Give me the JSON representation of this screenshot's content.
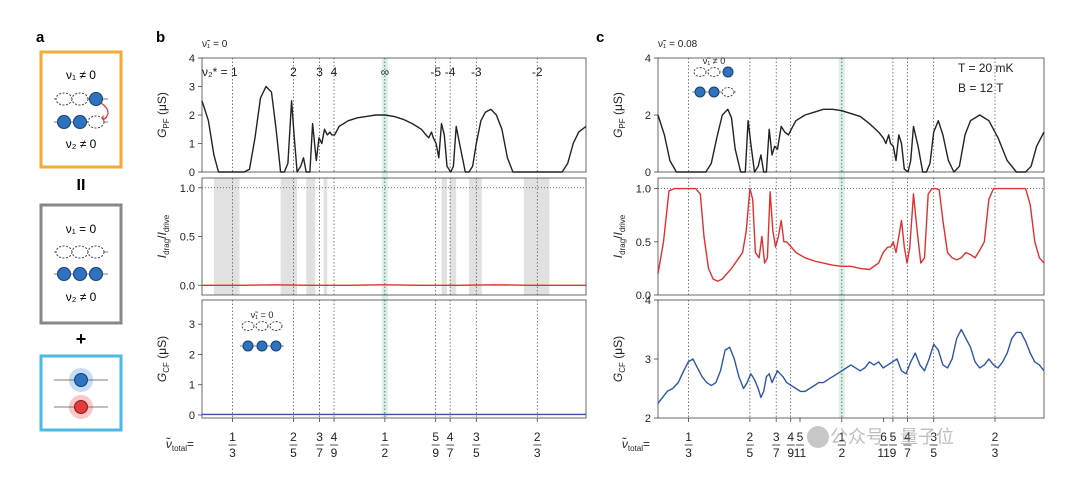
{
  "panels": {
    "a": {
      "label": "a",
      "box_top": {
        "line1": "ν₁ ≠ 0",
        "line2": "ν₂ ≠ 0"
      },
      "equals": "II",
      "box_middle": {
        "line1": "ν₁ = 0",
        "line2": "ν₂ ≠ 0"
      },
      "plus": "+"
    },
    "b": {
      "label": "b",
      "top_note": "ν̃₁ = 0",
      "nu2_label": "ν₂* = 1",
      "top_markers": [
        "2",
        "3",
        "4",
        "∞",
        "-5",
        "-4",
        "-3",
        "-2"
      ],
      "inset_label": "ν̃₁ = 0"
    },
    "c": {
      "label": "c",
      "top_note": "ν̃₁ = 0.08",
      "inset_label": "ν̃₁ ≠ 0",
      "temperature": "T = 20 mK",
      "field": "B = 12 T"
    }
  },
  "axis_labels": {
    "g_pf": "G_PF (μS)",
    "ratio": "I_drag/I_drive",
    "g_cf": "G_CF (μS)",
    "x_prefix": "ν̃_total ="
  },
  "watermark": "公众号 · 量子位",
  "chart_data": [
    {
      "id": "b-gpf",
      "panel": "b",
      "type": "line",
      "ylabel": "G_PF (μS)",
      "ylim": [
        0,
        4
      ],
      "yticks": [
        0,
        1,
        2,
        3,
        4
      ],
      "xlim": [
        0.3,
        0.72
      ],
      "color": "#222222",
      "x": [
        0.3,
        0.307,
        0.313,
        0.318,
        0.325,
        0.333,
        0.341,
        0.346,
        0.352,
        0.358,
        0.364,
        0.37,
        0.376,
        0.381,
        0.386,
        0.39,
        0.394,
        0.398,
        0.401,
        0.404,
        0.408,
        0.411,
        0.414,
        0.418,
        0.421,
        0.425,
        0.428,
        0.431,
        0.434,
        0.437,
        0.44,
        0.442,
        0.445,
        0.45,
        0.46,
        0.47,
        0.48,
        0.49,
        0.5,
        0.51,
        0.52,
        0.53,
        0.54,
        0.545,
        0.548,
        0.551,
        0.553,
        0.556,
        0.559,
        0.562,
        0.565,
        0.568,
        0.572,
        0.575,
        0.578,
        0.583,
        0.588,
        0.592,
        0.596,
        0.6,
        0.605,
        0.61,
        0.616,
        0.622,
        0.628,
        0.634,
        0.64,
        0.646,
        0.652,
        0.658,
        0.664,
        0.67,
        0.676,
        0.682,
        0.688,
        0.694,
        0.7,
        0.706,
        0.712,
        0.72
      ],
      "y": [
        2.5,
        1.8,
        0.6,
        0.0,
        0.0,
        0.0,
        0.0,
        0.0,
        0.1,
        1.2,
        2.6,
        3.0,
        2.8,
        1.5,
        0.0,
        0.0,
        0.3,
        2.5,
        1.2,
        0.0,
        0.2,
        0.5,
        0.0,
        0.0,
        1.7,
        0.4,
        1.2,
        1.0,
        1.5,
        1.3,
        1.4,
        1.3,
        1.3,
        1.6,
        1.8,
        1.9,
        1.95,
        2.0,
        2.0,
        1.95,
        1.85,
        1.7,
        1.5,
        1.3,
        1.2,
        1.4,
        1.2,
        1.0,
        0.5,
        1.7,
        1.3,
        0.2,
        0.0,
        0.2,
        1.6,
        0.8,
        0.0,
        0.0,
        0.2,
        1.0,
        1.8,
        2.1,
        2.2,
        2.0,
        1.5,
        0.5,
        0.0,
        0.0,
        0.0,
        0.0,
        0.0,
        0.0,
        0.0,
        0.0,
        0.0,
        0.0,
        0.3,
        1.0,
        1.4,
        1.6
      ]
    },
    {
      "id": "b-ratio",
      "panel": "b",
      "type": "line",
      "ylabel": "I_drag/I_drive",
      "ylim": [
        -0.1,
        1.1
      ],
      "yticks": [
        0.0,
        0.5,
        1.0
      ],
      "xlim": [
        0.3,
        0.72
      ],
      "color": "#e03030",
      "dotted_reference": 1.0,
      "x": [
        0.3,
        0.34,
        0.38,
        0.42,
        0.46,
        0.5,
        0.54,
        0.58,
        0.62,
        0.66,
        0.7,
        0.72
      ],
      "y": [
        0.0,
        0.0,
        0.005,
        0.0,
        0.0,
        0.005,
        0.0,
        0.0,
        0.005,
        0.0,
        0.0,
        0.0
      ],
      "shaded_x": [
        [
          0.313,
          0.341
        ],
        [
          0.386,
          0.404
        ],
        [
          0.414,
          0.424
        ],
        [
          0.433,
          0.437
        ],
        [
          0.562,
          0.568
        ],
        [
          0.571,
          0.578
        ],
        [
          0.592,
          0.606
        ],
        [
          0.652,
          0.68
        ]
      ]
    },
    {
      "id": "b-gcf",
      "panel": "b",
      "type": "line",
      "ylabel": "G_CF (μS)",
      "ylim": [
        -0.1,
        3.8
      ],
      "yticks": [
        0,
        1,
        2,
        3
      ],
      "xlim": [
        0.3,
        0.72
      ],
      "color": "#2e55a8",
      "x": [
        0.3,
        0.35,
        0.4,
        0.45,
        0.5,
        0.55,
        0.6,
        0.65,
        0.7,
        0.72
      ],
      "y": [
        0.02,
        0.02,
        0.02,
        0.02,
        0.02,
        0.02,
        0.02,
        0.02,
        0.02,
        0.02
      ]
    },
    {
      "id": "c-gpf",
      "panel": "c",
      "type": "line",
      "ylabel": "G_PF (μS)",
      "ylim": [
        0,
        4
      ],
      "yticks": [
        0,
        2,
        4
      ],
      "xlim": [
        0.3,
        0.72
      ],
      "color": "#222222",
      "x": [
        0.3,
        0.307,
        0.313,
        0.32,
        0.333,
        0.345,
        0.352,
        0.358,
        0.364,
        0.37,
        0.376,
        0.38,
        0.384,
        0.39,
        0.395,
        0.398,
        0.401,
        0.405,
        0.409,
        0.412,
        0.415,
        0.418,
        0.421,
        0.424,
        0.427,
        0.43,
        0.434,
        0.438,
        0.442,
        0.445,
        0.45,
        0.46,
        0.47,
        0.48,
        0.49,
        0.5,
        0.51,
        0.52,
        0.53,
        0.54,
        0.545,
        0.548,
        0.551,
        0.553,
        0.556,
        0.559,
        0.562,
        0.565,
        0.568,
        0.572,
        0.575,
        0.578,
        0.583,
        0.588,
        0.592,
        0.596,
        0.6,
        0.605,
        0.61,
        0.616,
        0.622,
        0.628,
        0.634,
        0.64,
        0.65,
        0.66,
        0.67,
        0.68,
        0.69,
        0.7,
        0.706,
        0.712,
        0.72
      ],
      "y": [
        2.0,
        1.3,
        0.4,
        0.0,
        0.0,
        0.0,
        0.0,
        0.3,
        1.2,
        2.0,
        2.2,
        1.9,
        0.8,
        0.0,
        0.0,
        1.8,
        1.0,
        0.0,
        0.2,
        0.6,
        0.0,
        0.0,
        1.5,
        0.6,
        0.9,
        0.8,
        1.6,
        1.4,
        1.3,
        1.5,
        1.8,
        2.0,
        2.1,
        2.2,
        2.2,
        2.15,
        2.05,
        1.95,
        1.7,
        1.4,
        1.2,
        1.0,
        1.3,
        1.0,
        0.9,
        0.4,
        1.3,
        1.0,
        0.1,
        0.0,
        0.4,
        1.6,
        0.9,
        0.0,
        0.0,
        0.3,
        1.4,
        1.8,
        1.3,
        0.4,
        0.0,
        0.2,
        1.3,
        1.8,
        2.0,
        1.8,
        1.2,
        0.4,
        0.0,
        0.0,
        0.2,
        0.9,
        1.4
      ]
    },
    {
      "id": "c-ratio",
      "panel": "c",
      "type": "line",
      "ylabel": "I_drag/I_drive",
      "ylim": [
        0.0,
        1.1
      ],
      "yticks": [
        0.0,
        0.5,
        1.0
      ],
      "xlim": [
        0.3,
        0.72
      ],
      "color": "#e03030",
      "dotted_reference": 1.0,
      "x": [
        0.3,
        0.306,
        0.312,
        0.318,
        0.325,
        0.333,
        0.341,
        0.346,
        0.35,
        0.355,
        0.36,
        0.365,
        0.37,
        0.375,
        0.38,
        0.384,
        0.388,
        0.392,
        0.396,
        0.4,
        0.403,
        0.406,
        0.41,
        0.413,
        0.416,
        0.419,
        0.422,
        0.425,
        0.428,
        0.431,
        0.434,
        0.437,
        0.44,
        0.445,
        0.45,
        0.46,
        0.47,
        0.48,
        0.49,
        0.5,
        0.51,
        0.52,
        0.53,
        0.54,
        0.545,
        0.55,
        0.553,
        0.556,
        0.559,
        0.562,
        0.565,
        0.568,
        0.571,
        0.574,
        0.578,
        0.582,
        0.586,
        0.59,
        0.594,
        0.598,
        0.602,
        0.606,
        0.61,
        0.615,
        0.62,
        0.625,
        0.63,
        0.635,
        0.64,
        0.645,
        0.65,
        0.655,
        0.66,
        0.665,
        0.67,
        0.675,
        0.68,
        0.69,
        0.7,
        0.705,
        0.71,
        0.715,
        0.72
      ],
      "y": [
        0.2,
        0.5,
        0.98,
        1.0,
        1.0,
        1.0,
        1.0,
        0.95,
        0.55,
        0.25,
        0.15,
        0.13,
        0.15,
        0.2,
        0.25,
        0.3,
        0.35,
        0.4,
        0.6,
        1.0,
        0.9,
        0.4,
        0.35,
        0.55,
        0.3,
        0.35,
        0.97,
        0.6,
        0.45,
        0.55,
        0.7,
        0.5,
        0.5,
        0.45,
        0.4,
        0.35,
        0.32,
        0.3,
        0.28,
        0.27,
        0.27,
        0.25,
        0.24,
        0.3,
        0.4,
        0.45,
        0.45,
        0.5,
        0.4,
        0.55,
        0.7,
        0.45,
        0.3,
        0.45,
        0.95,
        0.6,
        0.3,
        0.35,
        0.95,
        1.0,
        1.0,
        0.99,
        0.7,
        0.4,
        0.35,
        0.33,
        0.35,
        0.4,
        0.38,
        0.35,
        0.42,
        0.5,
        0.9,
        1.0,
        1.0,
        1.0,
        1.0,
        1.0,
        1.0,
        0.85,
        0.5,
        0.35,
        0.3
      ]
    },
    {
      "id": "c-gcf",
      "panel": "c",
      "type": "line",
      "ylabel": "G_CF (μS)",
      "ylim": [
        2.0,
        4.0
      ],
      "yticks": [
        2,
        3,
        4
      ],
      "xlim": [
        0.3,
        0.72
      ],
      "color": "#2e55a8",
      "x": [
        0.3,
        0.305,
        0.31,
        0.316,
        0.322,
        0.328,
        0.333,
        0.338,
        0.343,
        0.348,
        0.353,
        0.358,
        0.363,
        0.368,
        0.373,
        0.378,
        0.383,
        0.388,
        0.393,
        0.397,
        0.401,
        0.405,
        0.409,
        0.412,
        0.415,
        0.418,
        0.421,
        0.424,
        0.427,
        0.43,
        0.433,
        0.436,
        0.44,
        0.445,
        0.45,
        0.455,
        0.46,
        0.465,
        0.47,
        0.475,
        0.48,
        0.485,
        0.49,
        0.495,
        0.5,
        0.505,
        0.51,
        0.515,
        0.52,
        0.525,
        0.53,
        0.535,
        0.54,
        0.545,
        0.55,
        0.555,
        0.56,
        0.565,
        0.57,
        0.575,
        0.58,
        0.585,
        0.59,
        0.595,
        0.6,
        0.605,
        0.61,
        0.615,
        0.62,
        0.625,
        0.63,
        0.635,
        0.64,
        0.645,
        0.65,
        0.655,
        0.66,
        0.665,
        0.67,
        0.675,
        0.68,
        0.685,
        0.69,
        0.695,
        0.7,
        0.705,
        0.71,
        0.715,
        0.72
      ],
      "y": [
        2.25,
        2.35,
        2.45,
        2.5,
        2.6,
        2.8,
        2.95,
        3.0,
        2.85,
        2.7,
        2.6,
        2.55,
        2.6,
        2.8,
        3.15,
        3.2,
        3.0,
        2.7,
        2.5,
        2.6,
        2.75,
        2.65,
        2.5,
        2.35,
        2.45,
        2.7,
        2.75,
        2.6,
        2.7,
        2.8,
        2.75,
        2.7,
        2.6,
        2.55,
        2.5,
        2.45,
        2.45,
        2.5,
        2.55,
        2.6,
        2.6,
        2.65,
        2.7,
        2.75,
        2.8,
        2.85,
        2.9,
        2.85,
        2.8,
        2.85,
        2.95,
        2.9,
        2.95,
        2.85,
        2.9,
        2.95,
        3.0,
        2.8,
        2.75,
        2.95,
        3.1,
        2.9,
        2.8,
        3.0,
        3.25,
        3.15,
        2.9,
        2.85,
        3.0,
        3.35,
        3.5,
        3.35,
        3.2,
        2.95,
        2.85,
        2.9,
        3.0,
        2.9,
        2.85,
        2.95,
        3.1,
        3.35,
        3.45,
        3.45,
        3.3,
        3.1,
        2.95,
        2.9,
        2.8
      ]
    }
  ],
  "x_axis": {
    "xlim": [
      0.3,
      0.72
    ],
    "reference_lines": [
      0.3333,
      0.4,
      0.4286,
      0.4444,
      0.5,
      0.5556,
      0.5714,
      0.6,
      0.6667
    ],
    "highlight_x": 0.5,
    "fractions_b": [
      {
        "x": 0.3333,
        "num": "1",
        "den": "3"
      },
      {
        "x": 0.4,
        "num": "2",
        "den": "5"
      },
      {
        "x": 0.4286,
        "num": "3",
        "den": "7"
      },
      {
        "x": 0.4444,
        "num": "4",
        "den": "9"
      },
      {
        "x": 0.5,
        "num": "1",
        "den": "2"
      },
      {
        "x": 0.5556,
        "num": "5",
        "den": "9"
      },
      {
        "x": 0.5714,
        "num": "4",
        "den": "7"
      },
      {
        "x": 0.6,
        "num": "3",
        "den": "5"
      },
      {
        "x": 0.6667,
        "num": "2",
        "den": "3"
      }
    ],
    "fractions_c": [
      {
        "x": 0.3333,
        "num": "1",
        "den": "3"
      },
      {
        "x": 0.4,
        "num": "2",
        "den": "5"
      },
      {
        "x": 0.4286,
        "num": "3",
        "den": "7"
      },
      {
        "x": 0.4444,
        "num": "4",
        "den": "9"
      },
      {
        "x": 0.4545,
        "num": "5",
        "den": "11"
      },
      {
        "x": 0.5,
        "num": "1",
        "den": "2"
      },
      {
        "x": 0.5455,
        "num": "6",
        "den": "11"
      },
      {
        "x": 0.5556,
        "num": "5",
        "den": "9"
      },
      {
        "x": 0.5714,
        "num": "4",
        "den": "7"
      },
      {
        "x": 0.6,
        "num": "3",
        "den": "5"
      },
      {
        "x": 0.6667,
        "num": "2",
        "den": "3"
      }
    ],
    "top_markers_b": [
      {
        "x": 0.4,
        "label": "2"
      },
      {
        "x": 0.4286,
        "label": "3"
      },
      {
        "x": 0.4444,
        "label": "4"
      },
      {
        "x": 0.5,
        "label": "∞"
      },
      {
        "x": 0.5556,
        "label": "-5"
      },
      {
        "x": 0.5714,
        "label": "-4"
      },
      {
        "x": 0.6,
        "label": "-3"
      },
      {
        "x": 0.6667,
        "label": "-2"
      }
    ]
  }
}
